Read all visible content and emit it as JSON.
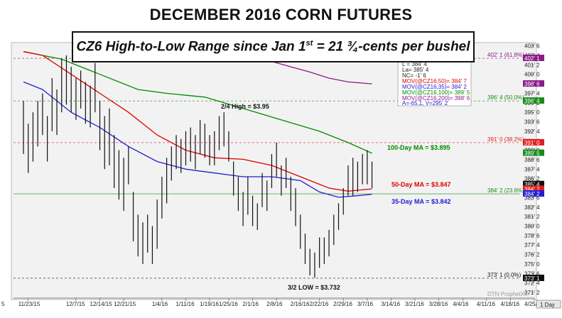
{
  "title": "DECEMBER 2016 CORN FUTURES",
  "subtitle": {
    "prefix": "CZ6 High-to-Low Range since Jan 1",
    "sup": "st",
    "suffix": " = 21 ¾-cents per bushel"
  },
  "watermark": "DTN ProphetX®",
  "period_button": "1 Day",
  "info_box": {
    "lines": [
      "L = 384' 4",
      "La= 385' 4",
      "NC= -1' 6"
    ],
    "ma_lines": [
      {
        "text": "MOV(@CZ16,50)= 384' 7",
        "color": "#e00000"
      },
      {
        "text": "MOV(@CZ16,35)= 384' 2",
        "color": "#2020d0"
      },
      {
        "text": "MOV(@CZ16,100)= 389' 5",
        "color": "#008a00"
      },
      {
        "text": "MOV(@CZ16,200)= 398' 6",
        "color": "#8b1a8b"
      }
    ],
    "footer": "A=-65.1, V=295' 2"
  },
  "annotations": {
    "high": "2/4 High = $3.95",
    "low": "3/2 LOW = $3.732",
    "ma100": "100-Day MA = $3.895",
    "ma50": "50-Day MA = $3.847",
    "ma35": "35-Day MA = $3.842"
  },
  "fib_levels": [
    {
      "label": "402' 1 (61.8%)",
      "value": 402.125
    },
    {
      "label": "396' 4 (50.0%)",
      "value": 396.5
    },
    {
      "label": "391' 0 (38.2%)",
      "value": 391.0
    },
    {
      "label": "384' 2 (23.6%)",
      "value": 384.25
    },
    {
      "label": "373' 1 (0.0%)",
      "value": 373.125
    }
  ],
  "price_tags": [
    {
      "label": "402' 1",
      "value": 402.125,
      "bg": "#8b1a8b",
      "fg": "#ffffff"
    },
    {
      "label": "398' 6",
      "value": 398.75,
      "bg": "#8b1a8b",
      "fg": "#ffffff"
    },
    {
      "label": "396' 4",
      "value": 396.5,
      "bg": "#1a8a1a",
      "fg": "#ffffff"
    },
    {
      "label": "391' 0",
      "value": 391.0,
      "bg": "#e02020",
      "fg": "#ffffff"
    },
    {
      "label": "389' 5",
      "value": 389.625,
      "bg": "#1a8a1a",
      "fg": "#ffffff"
    },
    {
      "label": "385' 4",
      "value": 385.5,
      "bg": "#111111",
      "fg": "#ffffff"
    },
    {
      "label": "384' 7",
      "value": 384.875,
      "bg": "#e02020",
      "fg": "#ffffff"
    },
    {
      "label": "384' 2",
      "value": 384.25,
      "bg": "#2020d0",
      "fg": "#ffffff"
    },
    {
      "label": "373' 1",
      "value": 373.125,
      "bg": "#111111",
      "fg": "#ffffff"
    }
  ],
  "chart_data": {
    "type": "ohlc",
    "title": "DECEMBER 2016 CORN FUTURES",
    "y_unit": "cents per bushel",
    "ylim": [
      370.5,
      404
    ],
    "y_ticks": [
      {
        "label": "403' 6",
        "value": 403.75
      },
      {
        "label": "402' 4",
        "value": 402.5
      },
      {
        "label": "401' 2",
        "value": 401.25
      },
      {
        "label": "400' 0",
        "value": 400.0
      },
      {
        "label": "398' 6",
        "value": 398.75
      },
      {
        "label": "397' 4",
        "value": 397.5
      },
      {
        "label": "396' 2",
        "value": 396.25
      },
      {
        "label": "395' 0",
        "value": 395.0
      },
      {
        "label": "393' 6",
        "value": 393.75
      },
      {
        "label": "392' 4",
        "value": 392.5
      },
      {
        "label": "391' 2",
        "value": 391.25
      },
      {
        "label": "390' 0",
        "value": 390.0
      },
      {
        "label": "388' 6",
        "value": 388.75
      },
      {
        "label": "387' 4",
        "value": 387.5
      },
      {
        "label": "386' 2",
        "value": 386.25
      },
      {
        "label": "385' 0",
        "value": 385.0
      },
      {
        "label": "383' 6",
        "value": 383.75
      },
      {
        "label": "382' 4",
        "value": 382.5
      },
      {
        "label": "381' 2",
        "value": 381.25
      },
      {
        "label": "380' 0",
        "value": 380.0
      },
      {
        "label": "378' 6",
        "value": 378.75
      },
      {
        "label": "377' 4",
        "value": 377.5
      },
      {
        "label": "376' 2",
        "value": 376.25
      },
      {
        "label": "375' 0",
        "value": 375.0
      },
      {
        "label": "373' 6",
        "value": 373.75
      },
      {
        "label": "372' 4",
        "value": 372.5
      },
      {
        "label": "371' 2",
        "value": 371.25
      }
    ],
    "x_labels": [
      "11/23/15",
      "12/7/15",
      "12/14/15",
      "12/21/15",
      "1/4/16",
      "1/11/16",
      "1/19/16",
      "1/25/16",
      "2/1/16",
      "2/8/16",
      "2/16/16",
      "2/22/16",
      "2/29/16",
      "3/7/16",
      "3/14/16",
      "3/21/16",
      "3/28/16",
      "4/4/16",
      "4/11/16",
      "4/18/16",
      "4/25/16"
    ],
    "x_label_positions": [
      1,
      11,
      16,
      21,
      29,
      34,
      39,
      43,
      48,
      53,
      58,
      62,
      67,
      72,
      77,
      82,
      87,
      92,
      97,
      102,
      107
    ],
    "bars": [
      [
        396.5,
        389.5
      ],
      [
        393.5,
        387.0
      ],
      [
        395.0,
        388.5
      ],
      [
        396.5,
        390.5
      ],
      [
        397.5,
        392.0
      ],
      [
        394.5,
        388.5
      ],
      [
        399.5,
        392.5
      ],
      [
        398.0,
        392.0
      ],
      [
        402.0,
        395.0
      ],
      [
        402.5,
        396.0
      ],
      [
        401.0,
        395.0
      ],
      [
        399.5,
        394.0
      ],
      [
        400.5,
        395.5
      ],
      [
        399.0,
        393.5
      ],
      [
        398.5,
        393.0
      ],
      [
        401.5,
        395.0
      ],
      [
        396.5,
        390.0
      ],
      [
        394.5,
        387.5
      ],
      [
        395.5,
        388.0
      ],
      [
        392.0,
        385.0
      ],
      [
        390.0,
        383.5
      ],
      [
        389.0,
        382.0
      ],
      [
        390.5,
        385.5
      ],
      [
        384.5,
        378.0
      ],
      [
        381.5,
        376.0
      ],
      [
        380.5,
        375.0
      ],
      [
        381.5,
        376.5
      ],
      [
        380.0,
        375.0
      ],
      [
        383.5,
        377.0
      ],
      [
        386.5,
        381.0
      ],
      [
        389.0,
        383.0
      ],
      [
        390.5,
        386.0
      ],
      [
        392.0,
        387.5
      ],
      [
        391.5,
        387.0
      ],
      [
        392.5,
        388.0
      ],
      [
        393.0,
        388.5
      ],
      [
        392.0,
        387.5
      ],
      [
        394.0,
        389.5
      ],
      [
        393.5,
        389.0
      ],
      [
        392.0,
        388.0
      ],
      [
        392.5,
        388.0
      ],
      [
        394.5,
        390.0
      ],
      [
        395.0,
        390.5
      ],
      [
        392.5,
        388.5
      ],
      [
        388.5,
        384.0
      ],
      [
        386.5,
        382.0
      ],
      [
        384.5,
        380.0
      ],
      [
        386.5,
        381.5
      ],
      [
        384.0,
        380.0
      ],
      [
        383.0,
        379.5
      ],
      [
        387.0,
        382.5
      ],
      [
        386.0,
        382.0
      ],
      [
        389.5,
        385.0
      ],
      [
        391.0,
        386.5
      ],
      [
        388.0,
        384.0
      ],
      [
        389.0,
        385.0
      ],
      [
        386.5,
        382.0
      ],
      [
        385.0,
        380.0
      ],
      [
        381.5,
        377.0
      ],
      [
        379.0,
        375.0
      ],
      [
        377.0,
        373.5
      ],
      [
        376.5,
        373.2
      ],
      [
        378.5,
        374.5
      ],
      [
        378.5,
        375.0
      ],
      [
        379.5,
        376.0
      ],
      [
        381.5,
        377.5
      ],
      [
        383.0,
        379.5
      ],
      [
        385.0,
        381.5
      ],
      [
        388.0,
        384.0
      ],
      [
        389.0,
        384.0
      ],
      [
        388.5,
        384.5
      ],
      [
        389.5,
        385.5
      ],
      [
        390.0,
        385.5
      ],
      [
        388.5,
        385.0
      ]
    ],
    "series": [
      {
        "name": "100-Day MA",
        "color": "#008a00",
        "points": [
          [
            0,
            403.0
          ],
          [
            8,
            402.0
          ],
          [
            16,
            400.0
          ],
          [
            24,
            398.0
          ],
          [
            30,
            397.5
          ],
          [
            38,
            397.0
          ],
          [
            46,
            395.5
          ],
          [
            54,
            394.0
          ],
          [
            62,
            392.5
          ],
          [
            68,
            391.0
          ],
          [
            73,
            389.6
          ]
        ]
      },
      {
        "name": "50-Day MA",
        "color": "#e00000",
        "points": [
          [
            0,
            403.0
          ],
          [
            4,
            402.5
          ],
          [
            10,
            400.0
          ],
          [
            16,
            397.5
          ],
          [
            22,
            395.0
          ],
          [
            28,
            392.0
          ],
          [
            34,
            390.0
          ],
          [
            40,
            389.0
          ],
          [
            46,
            388.8
          ],
          [
            52,
            388.0
          ],
          [
            58,
            386.5
          ],
          [
            64,
            385.0
          ],
          [
            68,
            384.6
          ],
          [
            73,
            384.9
          ]
        ]
      },
      {
        "name": "35-Day MA",
        "color": "#2020d0",
        "points": [
          [
            0,
            399.0
          ],
          [
            4,
            398.0
          ],
          [
            10,
            395.0
          ],
          [
            16,
            393.0
          ],
          [
            22,
            390.5
          ],
          [
            28,
            388.5
          ],
          [
            34,
            387.5
          ],
          [
            40,
            387.0
          ],
          [
            46,
            386.5
          ],
          [
            52,
            386.5
          ],
          [
            58,
            386.0
          ],
          [
            62,
            384.5
          ],
          [
            66,
            383.8
          ],
          [
            70,
            384.0
          ],
          [
            73,
            384.2
          ]
        ]
      },
      {
        "name": "200-Day MA",
        "color": "#8b1a8b",
        "points": [
          [
            52,
            401.7
          ],
          [
            56,
            401.0
          ],
          [
            60,
            400.3
          ],
          [
            64,
            399.5
          ],
          [
            68,
            399.0
          ],
          [
            73,
            398.75
          ]
        ]
      }
    ]
  }
}
